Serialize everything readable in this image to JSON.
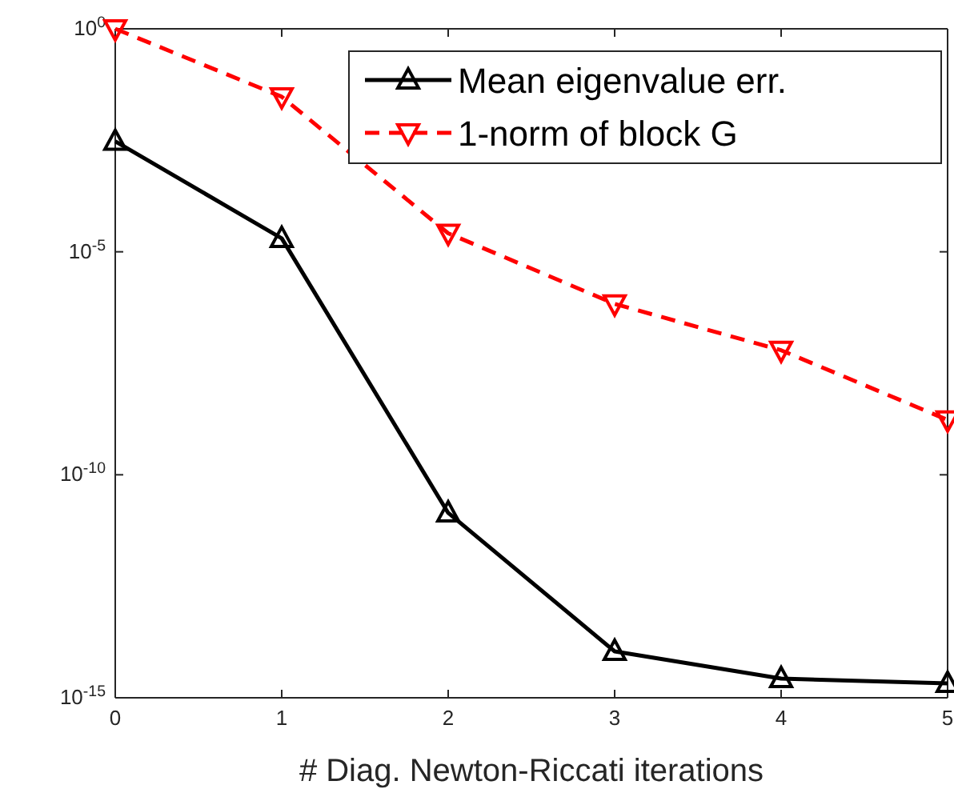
{
  "chart_data": {
    "type": "line",
    "xlabel": "# Diag. Newton-Riccati iterations",
    "x": [
      0,
      1,
      2,
      3,
      4,
      5
    ],
    "xlim": [
      0,
      5
    ],
    "xticks": [
      0,
      1,
      2,
      3,
      4,
      5
    ],
    "ylim": [
      1e-15,
      1
    ],
    "log": true,
    "yticks": [
      {
        "value": 1e-15,
        "label": "10$^{-15}$"
      },
      {
        "value": 1e-10,
        "label": "10$^{-10}$"
      },
      {
        "value": 1e-05,
        "label": "10$^{-5}$"
      },
      {
        "value": 1,
        "label": "10$^{0}$"
      }
    ],
    "legend": "top right",
    "grid": false,
    "series": [
      {
        "name": "Mean eigenvalue err.",
        "color": "#000000",
        "line_style": "solid",
        "marker": "triangle",
        "values": [
          0.003,
          2e-05,
          1.4e-11,
          1.1e-14,
          2.7e-15,
          2.1e-15
        ]
      },
      {
        "name": "1-norm of block G",
        "color": "#ff0000",
        "line_style": "dashed",
        "marker": "triangle-down",
        "values": [
          1,
          0.03,
          2.6e-05,
          6.8e-07,
          6.2e-08,
          1.7e-09
        ]
      }
    ]
  }
}
